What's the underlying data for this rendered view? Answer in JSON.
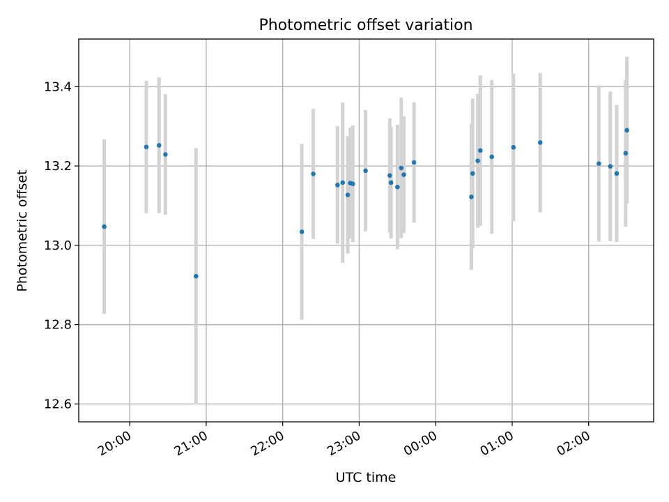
{
  "chart_data": {
    "type": "scatter",
    "title": "Photometric offset variation",
    "xlabel": "UTC time",
    "ylabel": "Photometric offset",
    "xlim": [
      "19:20",
      "02:51"
    ],
    "ylim": [
      12.555,
      13.52
    ],
    "grid": true,
    "x_ticks": [
      "20:00",
      "21:00",
      "22:00",
      "23:00",
      "00:00",
      "01:00",
      "02:00"
    ],
    "y_ticks": [
      "12.6",
      "12.8",
      "13.0",
      "13.2",
      "13.4"
    ],
    "colors": {
      "points": "#1f77b4",
      "errorbars": "#d3d3d3",
      "grid": "#b0b0b0"
    },
    "series": [
      {
        "x": [
          "19:40",
          "20:13",
          "20:23",
          "20:28",
          "20:52",
          "22:15",
          "22:24",
          "22:43",
          "22:47",
          "22:51",
          "22:53",
          "22:55",
          "23:05",
          "23:24",
          "23:25",
          "23:30",
          "23:33",
          "23:35",
          "23:43",
          "00:28",
          "00:29",
          "00:33",
          "00:35",
          "00:44",
          "01:01",
          "01:22",
          "02:08",
          "02:17",
          "02:22",
          "02:29",
          "02:30"
        ],
        "y": [
          13.047,
          13.248,
          13.252,
          13.229,
          12.922,
          13.034,
          13.18,
          13.152,
          13.158,
          13.127,
          13.157,
          13.155,
          13.188,
          13.176,
          13.158,
          13.147,
          13.195,
          13.178,
          13.209,
          13.122,
          13.181,
          13.213,
          13.239,
          13.223,
          13.247,
          13.259,
          13.206,
          13.199,
          13.181,
          13.232,
          13.29
        ],
        "yerr": [
          0.22,
          0.167,
          0.171,
          0.152,
          0.323,
          0.222,
          0.164,
          0.148,
          0.202,
          0.148,
          0.14,
          0.147,
          0.153,
          0.144,
          0.141,
          0.157,
          0.177,
          0.147,
          0.152,
          0.184,
          0.189,
          0.169,
          0.19,
          0.194,
          0.186,
          0.176,
          0.197,
          0.189,
          0.173,
          0.185,
          0.185
        ]
      }
    ]
  }
}
